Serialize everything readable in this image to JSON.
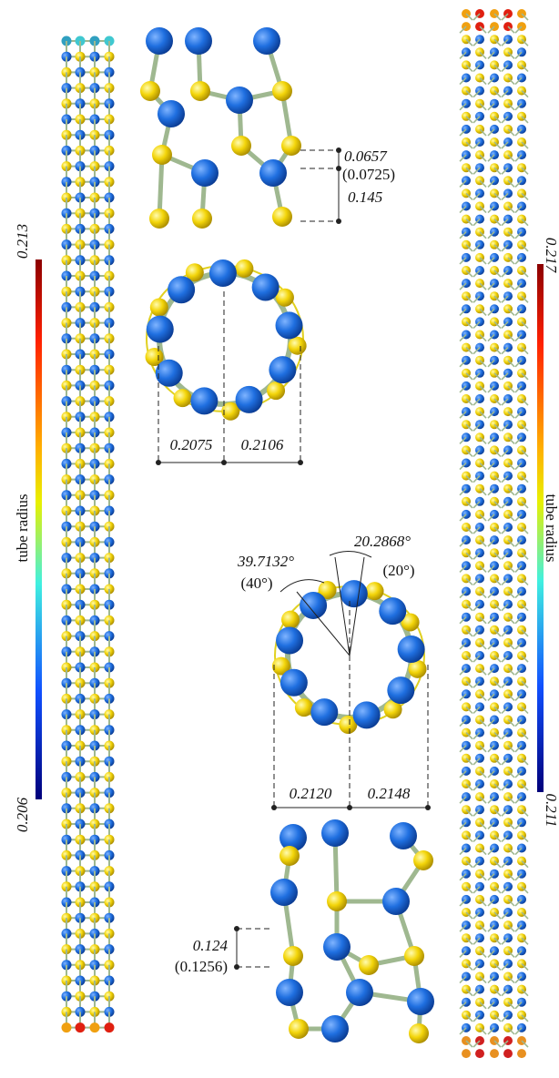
{
  "left_colorbar": {
    "max": "0.213",
    "label": "tube radius",
    "min": "0.206"
  },
  "right_colorbar": {
    "max": "0.217",
    "label": "tube radius",
    "min": "0.211"
  },
  "top_fragment": {
    "labels": [
      "0.0657",
      "(0.0725)",
      "0.145"
    ]
  },
  "top_ring": {
    "labels": [
      "0.2075",
      "0.2106"
    ]
  },
  "bottom_ring": {
    "angles": [
      "39.7132°",
      "(40°)",
      "20.2868°",
      "(20°)"
    ],
    "labels": [
      "0.2120",
      "0.2148"
    ]
  },
  "bottom_fragment": {
    "labels": [
      "0.124",
      "(0.1256)"
    ]
  }
}
